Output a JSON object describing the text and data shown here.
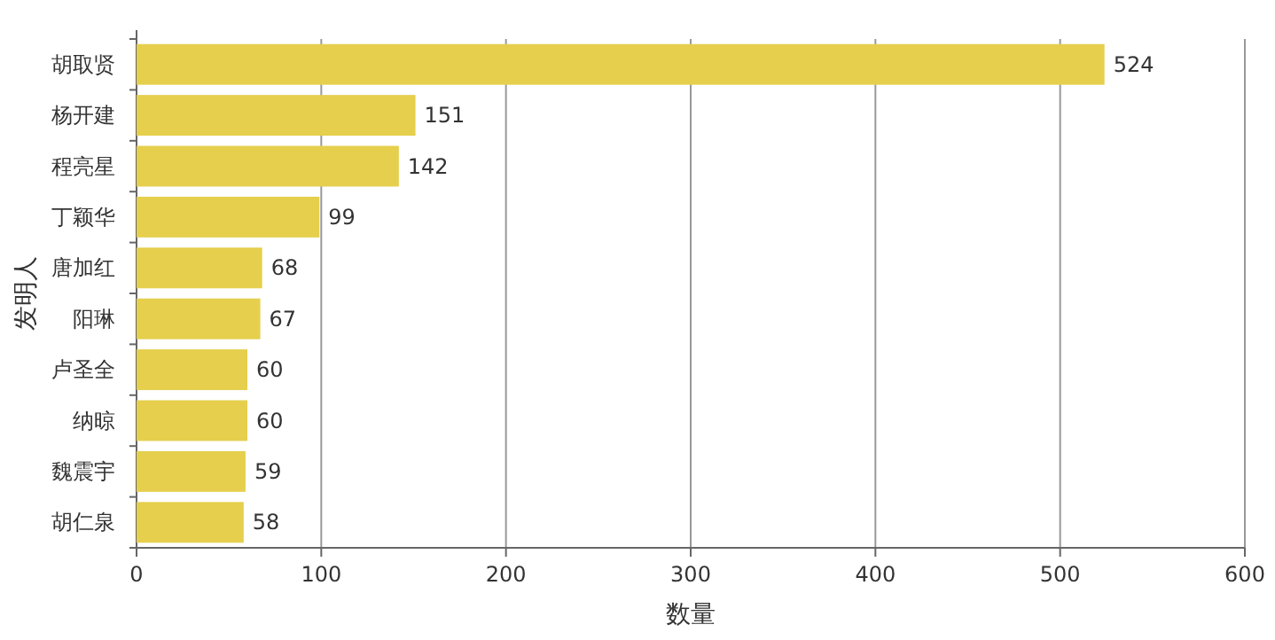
{
  "chart_data": {
    "type": "bar",
    "orientation": "horizontal",
    "xlabel": "数量",
    "ylabel": "发明人",
    "categories": [
      "胡取贤",
      "杨开建",
      "程亮星",
      "丁颖华",
      "唐加红",
      "阳琳",
      "卢圣全",
      "纳晾",
      "魏震宇",
      "胡仁泉"
    ],
    "values": [
      524,
      151,
      142,
      99,
      68,
      67,
      60,
      60,
      59,
      58
    ],
    "color": "#e5cf4d",
    "xlim": [
      0,
      600
    ],
    "xticks": [
      0,
      100,
      200,
      300,
      400,
      500,
      600
    ],
    "grid": "x",
    "data_labels": true
  }
}
